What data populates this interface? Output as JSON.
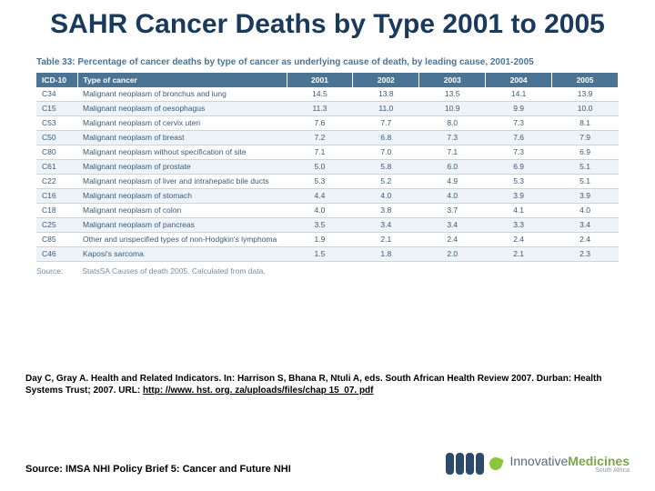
{
  "title": "SAHR Cancer Deaths by Type 2001 to 2005",
  "table": {
    "caption": "Table 33:   Percentage of cancer deaths by type of cancer as underlying cause of death, by leading cause, 2001-2005",
    "columns": [
      "ICD-10",
      "Type of cancer",
      "2001",
      "2002",
      "2003",
      "2004",
      "2005"
    ],
    "rows": [
      [
        "C34",
        "Malignant neoplasm of bronchus and lung",
        "14.5",
        "13.8",
        "13.5",
        "14.1",
        "13.9"
      ],
      [
        "C15",
        "Malignant neoplasm of oesophagus",
        "11.3",
        "11.0",
        "10.9",
        "9.9",
        "10.0"
      ],
      [
        "C53",
        "Malignant neoplasm of cervix uteri",
        "7.6",
        "7.7",
        "8.0",
        "7.3",
        "8.1"
      ],
      [
        "C50",
        "Malignant neoplasm of breast",
        "7.2",
        "6.8",
        "7.3",
        "7.6",
        "7.9"
      ],
      [
        "C80",
        "Malignant neoplasm without specification of site",
        "7.1",
        "7.0",
        "7.1",
        "7.3",
        "6.9"
      ],
      [
        "C61",
        "Malignant neoplasm of prostate",
        "5.0",
        "5.8",
        "6.0",
        "6.9",
        "5.1"
      ],
      [
        "C22",
        "Malignant neoplasm of liver and intrahepatic bile ducts",
        "5.3",
        "5.2",
        "4.9",
        "5.3",
        "5.1"
      ],
      [
        "C16",
        "Malignant neoplasm of stomach",
        "4.4",
        "4.0",
        "4.0",
        "3.9",
        "3.9"
      ],
      [
        "C18",
        "Malignant neoplasm of colon",
        "4.0",
        "3.8",
        "3.7",
        "4.1",
        "4.0"
      ],
      [
        "C25",
        "Malignant neoplasm of pancreas",
        "3.5",
        "3.4",
        "3.4",
        "3.3",
        "3.4"
      ],
      [
        "C85",
        "Other and unspecified types of non-Hodgkin's lymphoma",
        "1.9",
        "2.1",
        "2.4",
        "2.4",
        "2.4"
      ],
      [
        "C46",
        "Kaposi's sarcoma",
        "1.5",
        "1.8",
        "2.0",
        "2.1",
        "2.3"
      ]
    ],
    "source_label": "Source:",
    "source_text": "StatsSA Causes of death 2005. Calculated from data.",
    "header_bg": "#4b7494",
    "header_fg": "#ffffff",
    "row_alt_bg": "#eef3f7",
    "border_color": "#c9d6e0",
    "text_color": "#3a5a78"
  },
  "citation": {
    "text_a": "Day C, Gray A. Health and Related Indicators. In: Harrison S, Bhana R, Ntuli A, eds. South African Health Review 2007. Durban: Health Systems Trust; 2007.  URL: ",
    "url": "http: //www. hst. org. za/uploads/files/chap 15_07. pdf"
  },
  "footer_source": "Source: IMSA NHI Policy Brief 5: Cancer and Future NHI",
  "logo": {
    "main_a": "Innovative",
    "main_b": "Medicines",
    "sub": "South Africa",
    "pill_color": "#2e4a6b",
    "leaf_color": "#8cc63f"
  }
}
